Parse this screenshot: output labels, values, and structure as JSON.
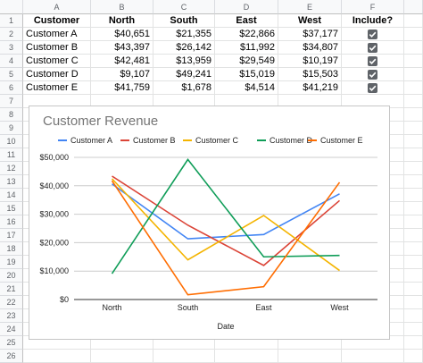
{
  "columns": [
    "A",
    "B",
    "C",
    "D",
    "E",
    "F"
  ],
  "rows": [
    "1",
    "2",
    "3",
    "4",
    "5",
    "6",
    "7",
    "8",
    "9",
    "10",
    "11",
    "12",
    "13",
    "14",
    "15",
    "16",
    "17",
    "18",
    "19",
    "20",
    "21",
    "22",
    "23",
    "24",
    "25",
    "26"
  ],
  "table": {
    "headers": [
      "Customer",
      "North",
      "South",
      "East",
      "West",
      "Include?"
    ],
    "rows": [
      {
        "name": "Customer A",
        "north": "$40,651",
        "south": "$21,355",
        "east": "$22,866",
        "west": "$37,177",
        "include": true
      },
      {
        "name": "Customer B",
        "north": "$43,397",
        "south": "$26,142",
        "east": "$11,992",
        "west": "$34,807",
        "include": true
      },
      {
        "name": "Customer C",
        "north": "$42,481",
        "south": "$13,959",
        "east": "$29,549",
        "west": "$10,197",
        "include": true
      },
      {
        "name": "Customer D",
        "north": "$9,107",
        "south": "$49,241",
        "east": "$15,019",
        "west": "$15,503",
        "include": true
      },
      {
        "name": "Customer E",
        "north": "$41,759",
        "south": "$1,678",
        "east": "$4,514",
        "west": "$41,219",
        "include": true
      }
    ]
  },
  "chart_data": {
    "type": "line",
    "title": "Customer Revenue",
    "xlabel": "Date",
    "ylabel": "",
    "categories": [
      "North",
      "South",
      "East",
      "West"
    ],
    "yticks": [
      "$0",
      "$10,000",
      "$20,000",
      "$30,000",
      "$40,000",
      "$50,000"
    ],
    "ylim": [
      0,
      50000
    ],
    "legend_position": "top",
    "series": [
      {
        "name": "Customer A",
        "color": "#4285f4",
        "values": [
          40651,
          21355,
          22866,
          37177
        ]
      },
      {
        "name": "Customer B",
        "color": "#db4437",
        "values": [
          43397,
          26142,
          11992,
          34807
        ]
      },
      {
        "name": "Customer C",
        "color": "#f4b400",
        "values": [
          42481,
          13959,
          29549,
          10197
        ]
      },
      {
        "name": "Customer D",
        "color": "#0f9d58",
        "values": [
          9107,
          49241,
          15019,
          15503
        ]
      },
      {
        "name": "Customer E",
        "color": "#ff6d01",
        "values": [
          41759,
          1678,
          4514,
          41219
        ]
      }
    ]
  },
  "icons": {
    "checkbox": "checkbox-checked-icon"
  }
}
